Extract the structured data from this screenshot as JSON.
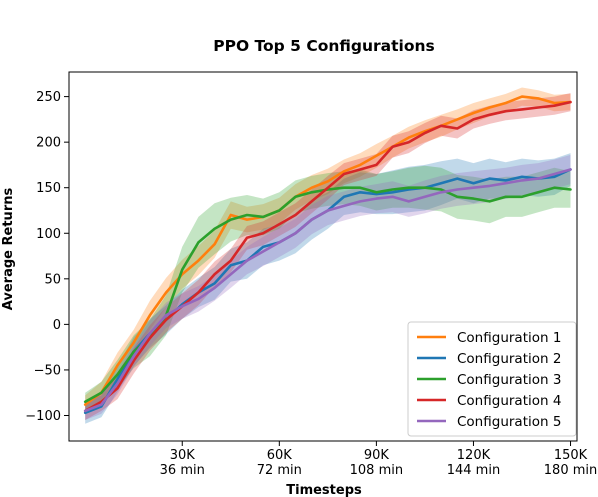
{
  "chart_data": {
    "type": "line",
    "title": "PPO Top 5 Configurations",
    "xlabel": "Timesteps",
    "ylabel": "Average Returns",
    "xlim": [
      -5000,
      152000
    ],
    "ylim": [
      -128,
      277
    ],
    "x_ticks": [
      {
        "value": 30000,
        "line1": "30K",
        "line2": "36 min"
      },
      {
        "value": 60000,
        "line1": "60K",
        "line2": "72 min"
      },
      {
        "value": 90000,
        "line1": "90K",
        "line2": "108 min"
      },
      {
        "value": 120000,
        "line1": "120K",
        "line2": "144 min"
      },
      {
        "value": 150000,
        "line1": "150K",
        "line2": "180 min"
      }
    ],
    "y_ticks": [
      {
        "value": -100,
        "label": "−100"
      },
      {
        "value": -50,
        "label": "−50"
      },
      {
        "value": 0,
        "label": "0"
      },
      {
        "value": 50,
        "label": "50"
      },
      {
        "value": 100,
        "label": "100"
      },
      {
        "value": 150,
        "label": "150"
      },
      {
        "value": 200,
        "label": "200"
      },
      {
        "value": 250,
        "label": "250"
      }
    ],
    "grid": false,
    "legend_position": "bottom-right",
    "x": [
      0,
      5000,
      10000,
      15000,
      20000,
      25000,
      30000,
      35000,
      40000,
      45000,
      50000,
      55000,
      60000,
      65000,
      70000,
      75000,
      80000,
      85000,
      90000,
      95000,
      100000,
      105000,
      110000,
      115000,
      120000,
      125000,
      130000,
      135000,
      140000,
      145000,
      150000
    ],
    "series": [
      {
        "name": "Configuration 1",
        "color": "#ff7f0e",
        "values": [
          -88,
          -75,
          -45,
          -20,
          10,
          35,
          55,
          70,
          88,
          120,
          115,
          118,
          125,
          140,
          150,
          157,
          168,
          175,
          185,
          195,
          205,
          212,
          218,
          225,
          232,
          238,
          243,
          250,
          248,
          243,
          244
        ],
        "band": [
          10,
          12,
          14,
          14,
          16,
          16,
          16,
          16,
          15,
          15,
          14,
          14,
          14,
          14,
          14,
          14,
          13,
          13,
          13,
          12,
          12,
          12,
          12,
          11,
          11,
          10,
          10,
          10,
          9,
          9,
          9
        ]
      },
      {
        "name": "Configuration 2",
        "color": "#1f77b4",
        "values": [
          -97,
          -90,
          -60,
          -30,
          -10,
          5,
          22,
          35,
          45,
          65,
          70,
          85,
          90,
          100,
          115,
          125,
          140,
          145,
          143,
          145,
          148,
          150,
          155,
          160,
          155,
          160,
          158,
          162,
          160,
          162,
          170
        ],
        "band": [
          12,
          12,
          14,
          16,
          16,
          16,
          16,
          16,
          18,
          18,
          20,
          20,
          20,
          22,
          22,
          20,
          20,
          22,
          22,
          24,
          25,
          25,
          24,
          22,
          22,
          22,
          20,
          20,
          20,
          20,
          18
        ]
      },
      {
        "name": "Configuration 3",
        "color": "#2ca02c",
        "values": [
          -85,
          -75,
          -55,
          -30,
          -15,
          10,
          60,
          90,
          105,
          115,
          120,
          118,
          125,
          140,
          145,
          148,
          150,
          150,
          145,
          148,
          150,
          150,
          148,
          140,
          138,
          135,
          140,
          140,
          145,
          150,
          148
        ],
        "band": [
          10,
          12,
          16,
          18,
          20,
          22,
          25,
          28,
          28,
          24,
          22,
          20,
          20,
          18,
          18,
          18,
          18,
          20,
          20,
          20,
          22,
          24,
          24,
          24,
          24,
          24,
          22,
          22,
          22,
          22,
          20
        ]
      },
      {
        "name": "Configuration 4",
        "color": "#d62728",
        "values": [
          -95,
          -85,
          -70,
          -40,
          -15,
          5,
          20,
          35,
          55,
          70,
          95,
          100,
          110,
          120,
          135,
          150,
          165,
          170,
          175,
          195,
          200,
          210,
          218,
          215,
          225,
          230,
          234,
          236,
          238,
          240,
          244
        ],
        "band": [
          10,
          10,
          12,
          14,
          14,
          14,
          14,
          14,
          14,
          13,
          13,
          13,
          13,
          13,
          13,
          13,
          12,
          12,
          12,
          12,
          12,
          11,
          11,
          11,
          10,
          10,
          10,
          10,
          10,
          10,
          10
        ]
      },
      {
        "name": "Configuration 5",
        "color": "#9467bd",
        "values": [
          -95,
          -88,
          -65,
          -35,
          -10,
          10,
          20,
          28,
          40,
          55,
          70,
          80,
          90,
          100,
          115,
          125,
          130,
          135,
          138,
          140,
          135,
          140,
          145,
          148,
          150,
          152,
          155,
          158,
          160,
          165,
          170
        ],
        "band": [
          10,
          10,
          12,
          12,
          14,
          14,
          14,
          14,
          14,
          15,
          15,
          16,
          16,
          16,
          16,
          16,
          16,
          16,
          16,
          17,
          17,
          18,
          18,
          18,
          18,
          18,
          17,
          17,
          17,
          16,
          16
        ]
      }
    ]
  }
}
